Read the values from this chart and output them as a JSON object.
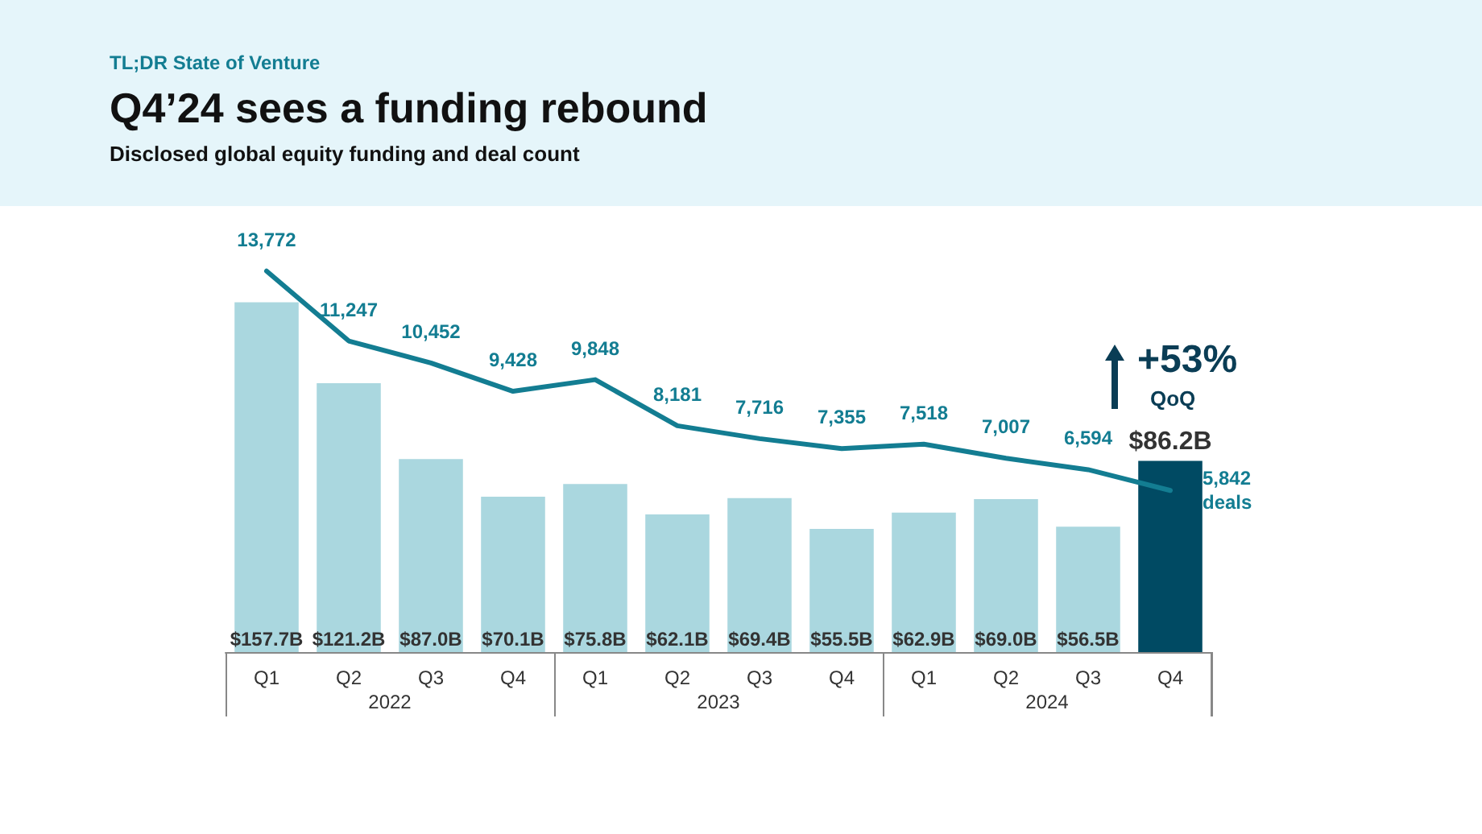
{
  "chart_data": {
    "type": "bar",
    "title": "Q4’24 sees a funding rebound",
    "subtitle": "Disclosed global equity funding and deal count",
    "annotations": [
      "TL;DR State of Venture",
      "2022",
      "2023",
      "2024",
      "+53%",
      "QoQ"
    ],
    "categories": [
      "Q1",
      "Q2",
      "Q3",
      "Q4",
      "Q1",
      "Q2",
      "Q3",
      "Q4",
      "Q1",
      "Q2",
      "Q3",
      "Q4"
    ],
    "series": [
      {
        "colors": [
          "#aad7df",
          "#aad7df",
          "#aad7df",
          "#aad7df",
          "#aad7df",
          "#aad7df",
          "#aad7df",
          "#aad7df",
          "#aad7df",
          "#aad7df",
          "#aad7df",
          "#004a63"
        ],
        "values": [
          157.7,
          121.2,
          87.0,
          70.1,
          75.8,
          62.1,
          69.4,
          55.5,
          62.9,
          69.0,
          56.5,
          86.2
        ],
        "value_labels": [
          "$157.7B",
          "$121.2B",
          "$87.0B",
          "$70.1B",
          "$75.8B",
          "$62.1B",
          "$69.4B",
          "$55.5B",
          "$62.9B",
          "$69.0B",
          "$56.5B",
          "$86.2B"
        ]
      },
      {
        "type": "line",
        "axis": "y2",
        "color": "#137d92",
        "marker": "none",
        "line_style": "solid",
        "values": [
          13772,
          11247,
          10452,
          9428,
          9848,
          8181,
          7716,
          7355,
          7518,
          7007,
          6594,
          5842
        ],
        "value_labels": [
          "13,772",
          "11,247",
          "10,452",
          "9,428",
          "9,848",
          "8,181",
          "7,716",
          "7,355",
          "7,518",
          "7,007",
          "6,594",
          "5,842 deals"
        ]
      }
    ]
  }
}
